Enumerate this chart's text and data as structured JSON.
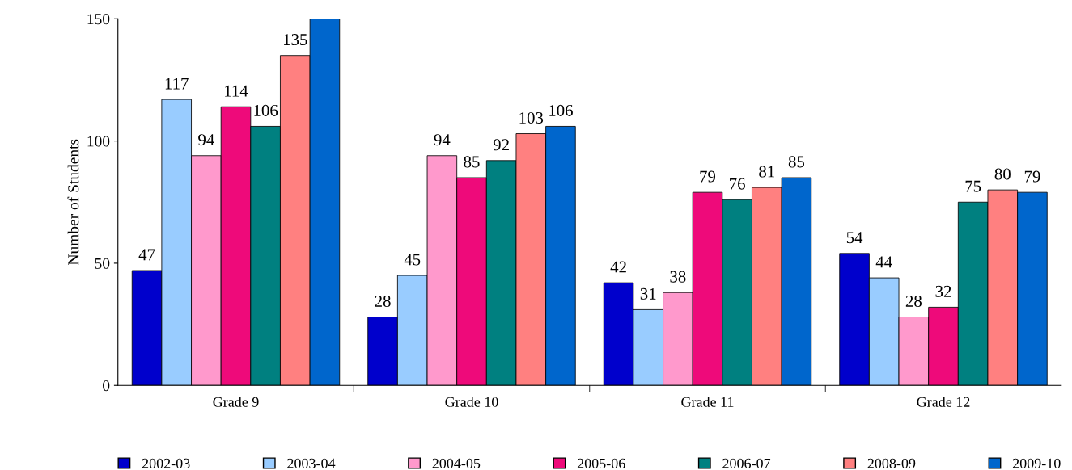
{
  "chart_data": {
    "type": "bar",
    "ylabel": "Number of Students",
    "categories": [
      "Grade 9",
      "Grade 10",
      "Grade 11",
      "Grade 12"
    ],
    "series": [
      {
        "name": "2002-03",
        "color": "#0000cc",
        "values": [
          47,
          28,
          42,
          54
        ],
        "value_labels": [
          "47",
          "28",
          "42",
          "54"
        ]
      },
      {
        "name": "2003-04",
        "color": "#99ccff",
        "values": [
          117,
          45,
          31,
          44
        ],
        "value_labels": [
          "117",
          "45",
          "31",
          "44"
        ]
      },
      {
        "name": "2004-05",
        "color": "#ff99cc",
        "values": [
          94,
          94,
          38,
          28
        ],
        "value_labels": [
          "94",
          "94",
          "38",
          "28"
        ]
      },
      {
        "name": "2005-06",
        "color": "#ee0a7a",
        "values": [
          114,
          85,
          79,
          32
        ],
        "value_labels": [
          "114",
          "85",
          "79",
          "32"
        ]
      },
      {
        "name": "2006-07",
        "color": "#008080",
        "values": [
          106,
          92,
          76,
          75
        ],
        "value_labels": [
          "106",
          "92",
          "76",
          "75"
        ]
      },
      {
        "name": "2008-09",
        "color": "#ff8080",
        "values": [
          135,
          103,
          81,
          80
        ],
        "value_labels": [
          "135",
          "103",
          "81",
          "80"
        ]
      },
      {
        "name": "2009-10",
        "color": "#0066cc",
        "values": [
          150,
          106,
          85,
          79
        ],
        "value_labels": [
          null,
          "106",
          "85",
          "79"
        ]
      }
    ],
    "ylim": [
      0,
      150
    ],
    "yticks": [
      0,
      50,
      100,
      150
    ],
    "grid": false,
    "legend": "bottom"
  }
}
